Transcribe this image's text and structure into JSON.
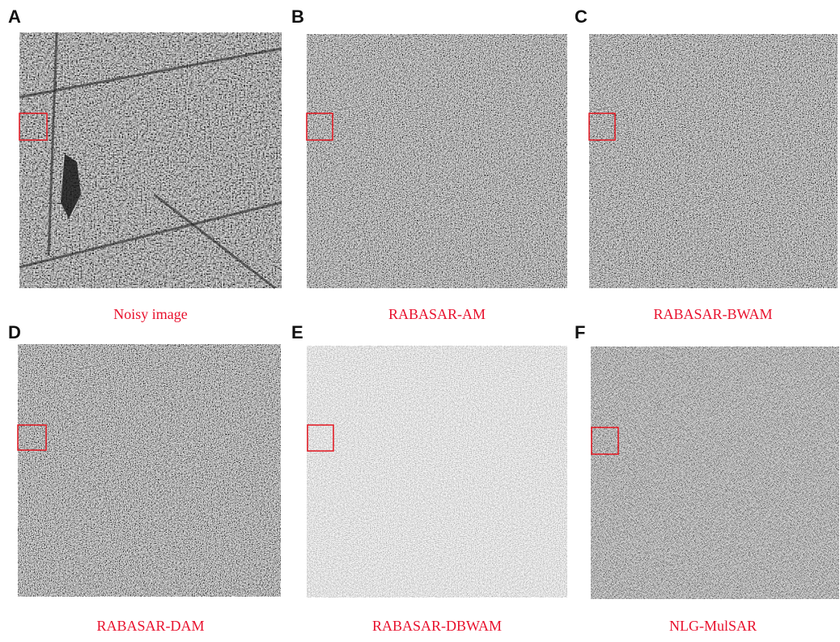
{
  "panels": [
    {
      "letter": "A",
      "caption": "Noisy image"
    },
    {
      "letter": "B",
      "caption": "RABASAR-AM"
    },
    {
      "letter": "C",
      "caption": "RABASAR-BWAM"
    },
    {
      "letter": "D",
      "caption": "RABASAR-DAM"
    },
    {
      "letter": "E",
      "caption": "RABASAR-DBWAM"
    },
    {
      "letter": "F",
      "caption": "NLG-MulSAR"
    }
  ]
}
